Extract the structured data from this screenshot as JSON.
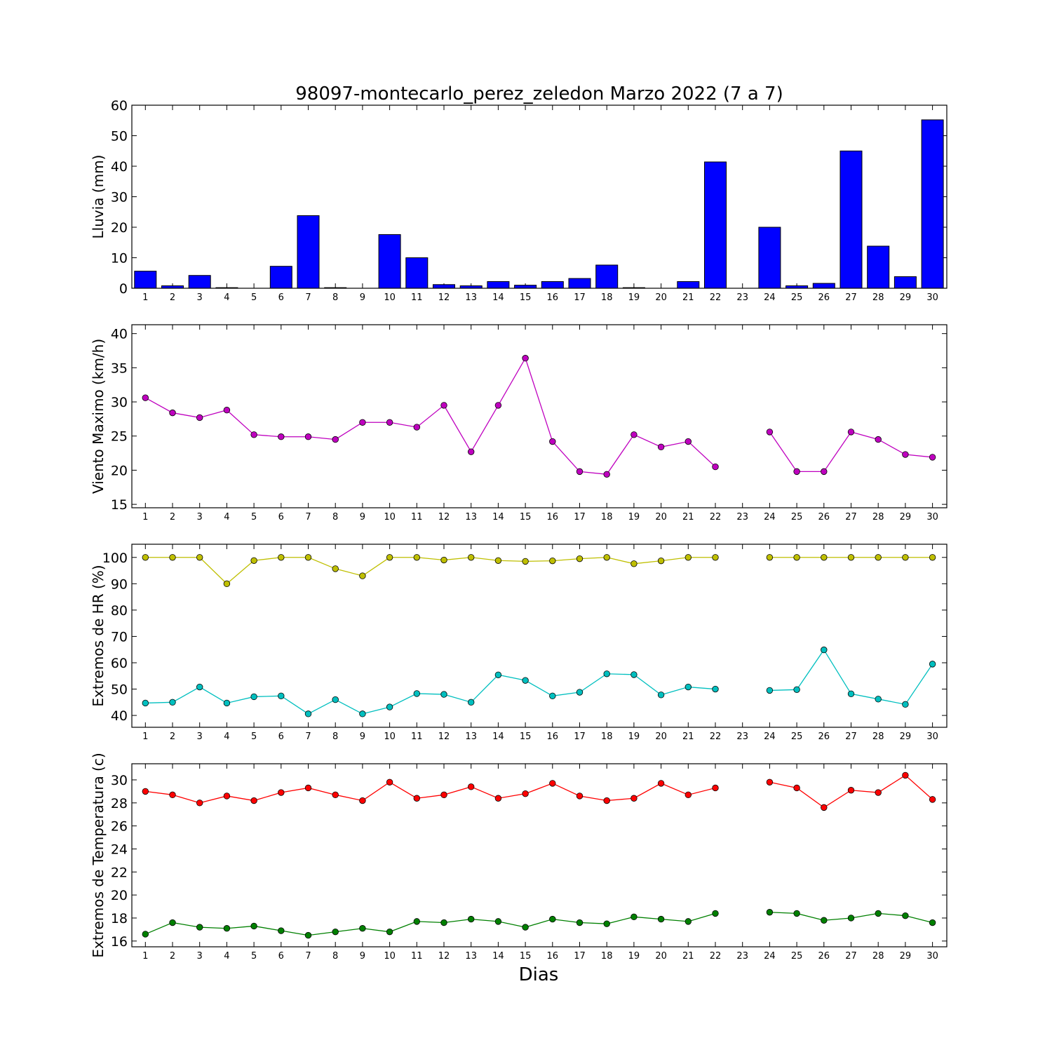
{
  "figure": {
    "title": "98097-montecarlo_perez_zeledon Marzo 2022  (7 a 7)",
    "xlabel": "Dias"
  },
  "chart_data": [
    {
      "type": "bar",
      "ylabel": "Lluvia (mm)",
      "ylim": [
        0,
        60
      ],
      "yticks": [
        0,
        10,
        20,
        30,
        40,
        50,
        60
      ],
      "categories": [
        "1",
        "2",
        "3",
        "4",
        "5",
        "6",
        "7",
        "8",
        "9",
        "10",
        "11",
        "12",
        "13",
        "14",
        "15",
        "16",
        "17",
        "18",
        "19",
        "20",
        "21",
        "22",
        "23",
        "24",
        "25",
        "26",
        "27",
        "28",
        "29",
        "30"
      ],
      "series": [
        {
          "color": "#0000ff",
          "values": [
            5.6,
            0.8,
            4.2,
            0.2,
            0,
            7.2,
            23.8,
            0.2,
            0,
            17.6,
            10.0,
            1.2,
            0.8,
            2.2,
            1.0,
            2.2,
            3.2,
            7.6,
            0.2,
            0,
            2.2,
            41.4,
            0,
            20.0,
            0.8,
            1.6,
            45.0,
            13.8,
            3.8,
            55.2
          ]
        }
      ]
    },
    {
      "type": "line",
      "ylabel": "Viento Maximo (km/h)",
      "ylim": [
        14.5,
        41.3
      ],
      "yticks": [
        15,
        20,
        25,
        30,
        35,
        40
      ],
      "x": [
        1,
        2,
        3,
        4,
        5,
        6,
        7,
        8,
        9,
        10,
        11,
        12,
        13,
        14,
        15,
        16,
        17,
        18,
        19,
        20,
        21,
        22,
        23,
        24,
        25,
        26,
        27,
        28,
        29,
        30
      ],
      "series": [
        {
          "color": "#bf00bf",
          "values": [
            30.6,
            28.4,
            27.7,
            28.8,
            25.2,
            24.9,
            24.9,
            24.5,
            27.0,
            27.0,
            26.3,
            29.5,
            22.7,
            29.5,
            36.4,
            24.2,
            19.8,
            19.4,
            25.2,
            23.4,
            24.2,
            20.5,
            null,
            25.6,
            19.8,
            19.8,
            25.6,
            24.5,
            22.3,
            21.9
          ]
        }
      ]
    },
    {
      "type": "line",
      "ylabel": "Extremos de HR (%)",
      "ylim": [
        35.5,
        105
      ],
      "yticks": [
        40,
        50,
        60,
        70,
        80,
        90,
        100
      ],
      "x": [
        1,
        2,
        3,
        4,
        5,
        6,
        7,
        8,
        9,
        10,
        11,
        12,
        13,
        14,
        15,
        16,
        17,
        18,
        19,
        20,
        21,
        22,
        23,
        24,
        25,
        26,
        27,
        28,
        29,
        30
      ],
      "series": [
        {
          "color": "#bfbf00",
          "values": [
            100,
            100,
            100,
            90,
            98.8,
            100,
            100,
            95.7,
            93,
            100,
            100,
            99,
            100,
            98.8,
            98.5,
            98.7,
            99.5,
            100,
            97.6,
            98.7,
            100,
            100,
            null,
            100,
            100,
            100,
            100,
            100,
            100,
            100
          ]
        },
        {
          "color": "#00bfbf",
          "values": [
            44.7,
            45.0,
            50.8,
            44.7,
            47.1,
            47.4,
            40.6,
            46.0,
            40.6,
            43.2,
            48.3,
            48.0,
            45.0,
            55.4,
            53.3,
            47.4,
            48.8,
            55.8,
            55.5,
            47.8,
            50.8,
            50.0,
            null,
            49.5,
            49.8,
            64.9,
            48.2,
            46.2,
            44.2,
            59.5
          ]
        }
      ]
    },
    {
      "type": "line",
      "ylabel": "Extremos de Temperatura (c)",
      "ylim": [
        15.5,
        31.4
      ],
      "yticks": [
        16,
        18,
        20,
        22,
        24,
        26,
        28,
        30
      ],
      "x": [
        1,
        2,
        3,
        4,
        5,
        6,
        7,
        8,
        9,
        10,
        11,
        12,
        13,
        14,
        15,
        16,
        17,
        18,
        19,
        20,
        21,
        22,
        23,
        24,
        25,
        26,
        27,
        28,
        29,
        30
      ],
      "series": [
        {
          "color": "#ff0000",
          "values": [
            29.0,
            28.7,
            28.0,
            28.6,
            28.2,
            28.9,
            29.3,
            28.7,
            28.2,
            29.8,
            28.4,
            28.7,
            29.4,
            28.4,
            28.8,
            29.7,
            28.6,
            28.2,
            28.4,
            29.7,
            28.7,
            29.3,
            null,
            29.8,
            29.3,
            27.6,
            29.1,
            28.9,
            30.4,
            28.3
          ]
        },
        {
          "color": "#008000",
          "values": [
            16.6,
            17.6,
            17.2,
            17.1,
            17.3,
            16.9,
            16.5,
            16.8,
            17.1,
            16.8,
            17.7,
            17.6,
            17.9,
            17.7,
            17.2,
            17.9,
            17.6,
            17.5,
            18.1,
            17.9,
            17.7,
            18.4,
            null,
            18.5,
            18.4,
            17.8,
            18.0,
            18.4,
            18.2,
            17.6
          ]
        }
      ]
    }
  ]
}
